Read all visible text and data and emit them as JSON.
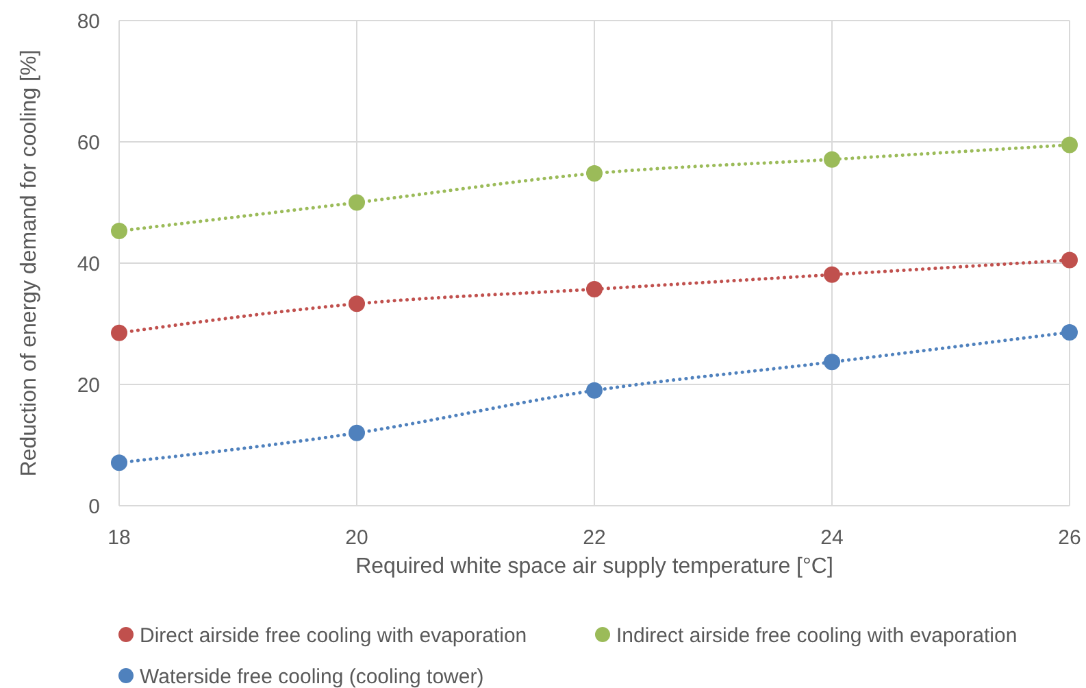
{
  "chart_data": {
    "type": "line",
    "xlabel": "Required white space air supply temperature [°C]",
    "ylabel": "Reduction of energy demand for cooling [%]",
    "x": [
      18,
      20,
      22,
      24,
      26
    ],
    "series": [
      {
        "name": "Direct airside free cooling with evaporation",
        "color": "#c0504d",
        "values": [
          28.5,
          33.3,
          35.7,
          38.1,
          40.5
        ]
      },
      {
        "name": "Indirect airside free cooling with evaporation",
        "color": "#9bbb59",
        "values": [
          45.3,
          50.0,
          54.8,
          57.1,
          59.5
        ]
      },
      {
        "name": "Waterside free cooling (cooling tower)",
        "color": "#4f81bd",
        "values": [
          7.1,
          12.0,
          19.0,
          23.7,
          28.6
        ]
      }
    ],
    "xlim": [
      18,
      26
    ],
    "xticks": [
      18,
      20,
      22,
      24,
      26
    ],
    "ylim": [
      0,
      80
    ],
    "yticks": [
      0,
      20,
      40,
      60,
      80
    ],
    "grid": true,
    "legend": "bottom",
    "marker": "circle",
    "line_style": "dotted"
  }
}
